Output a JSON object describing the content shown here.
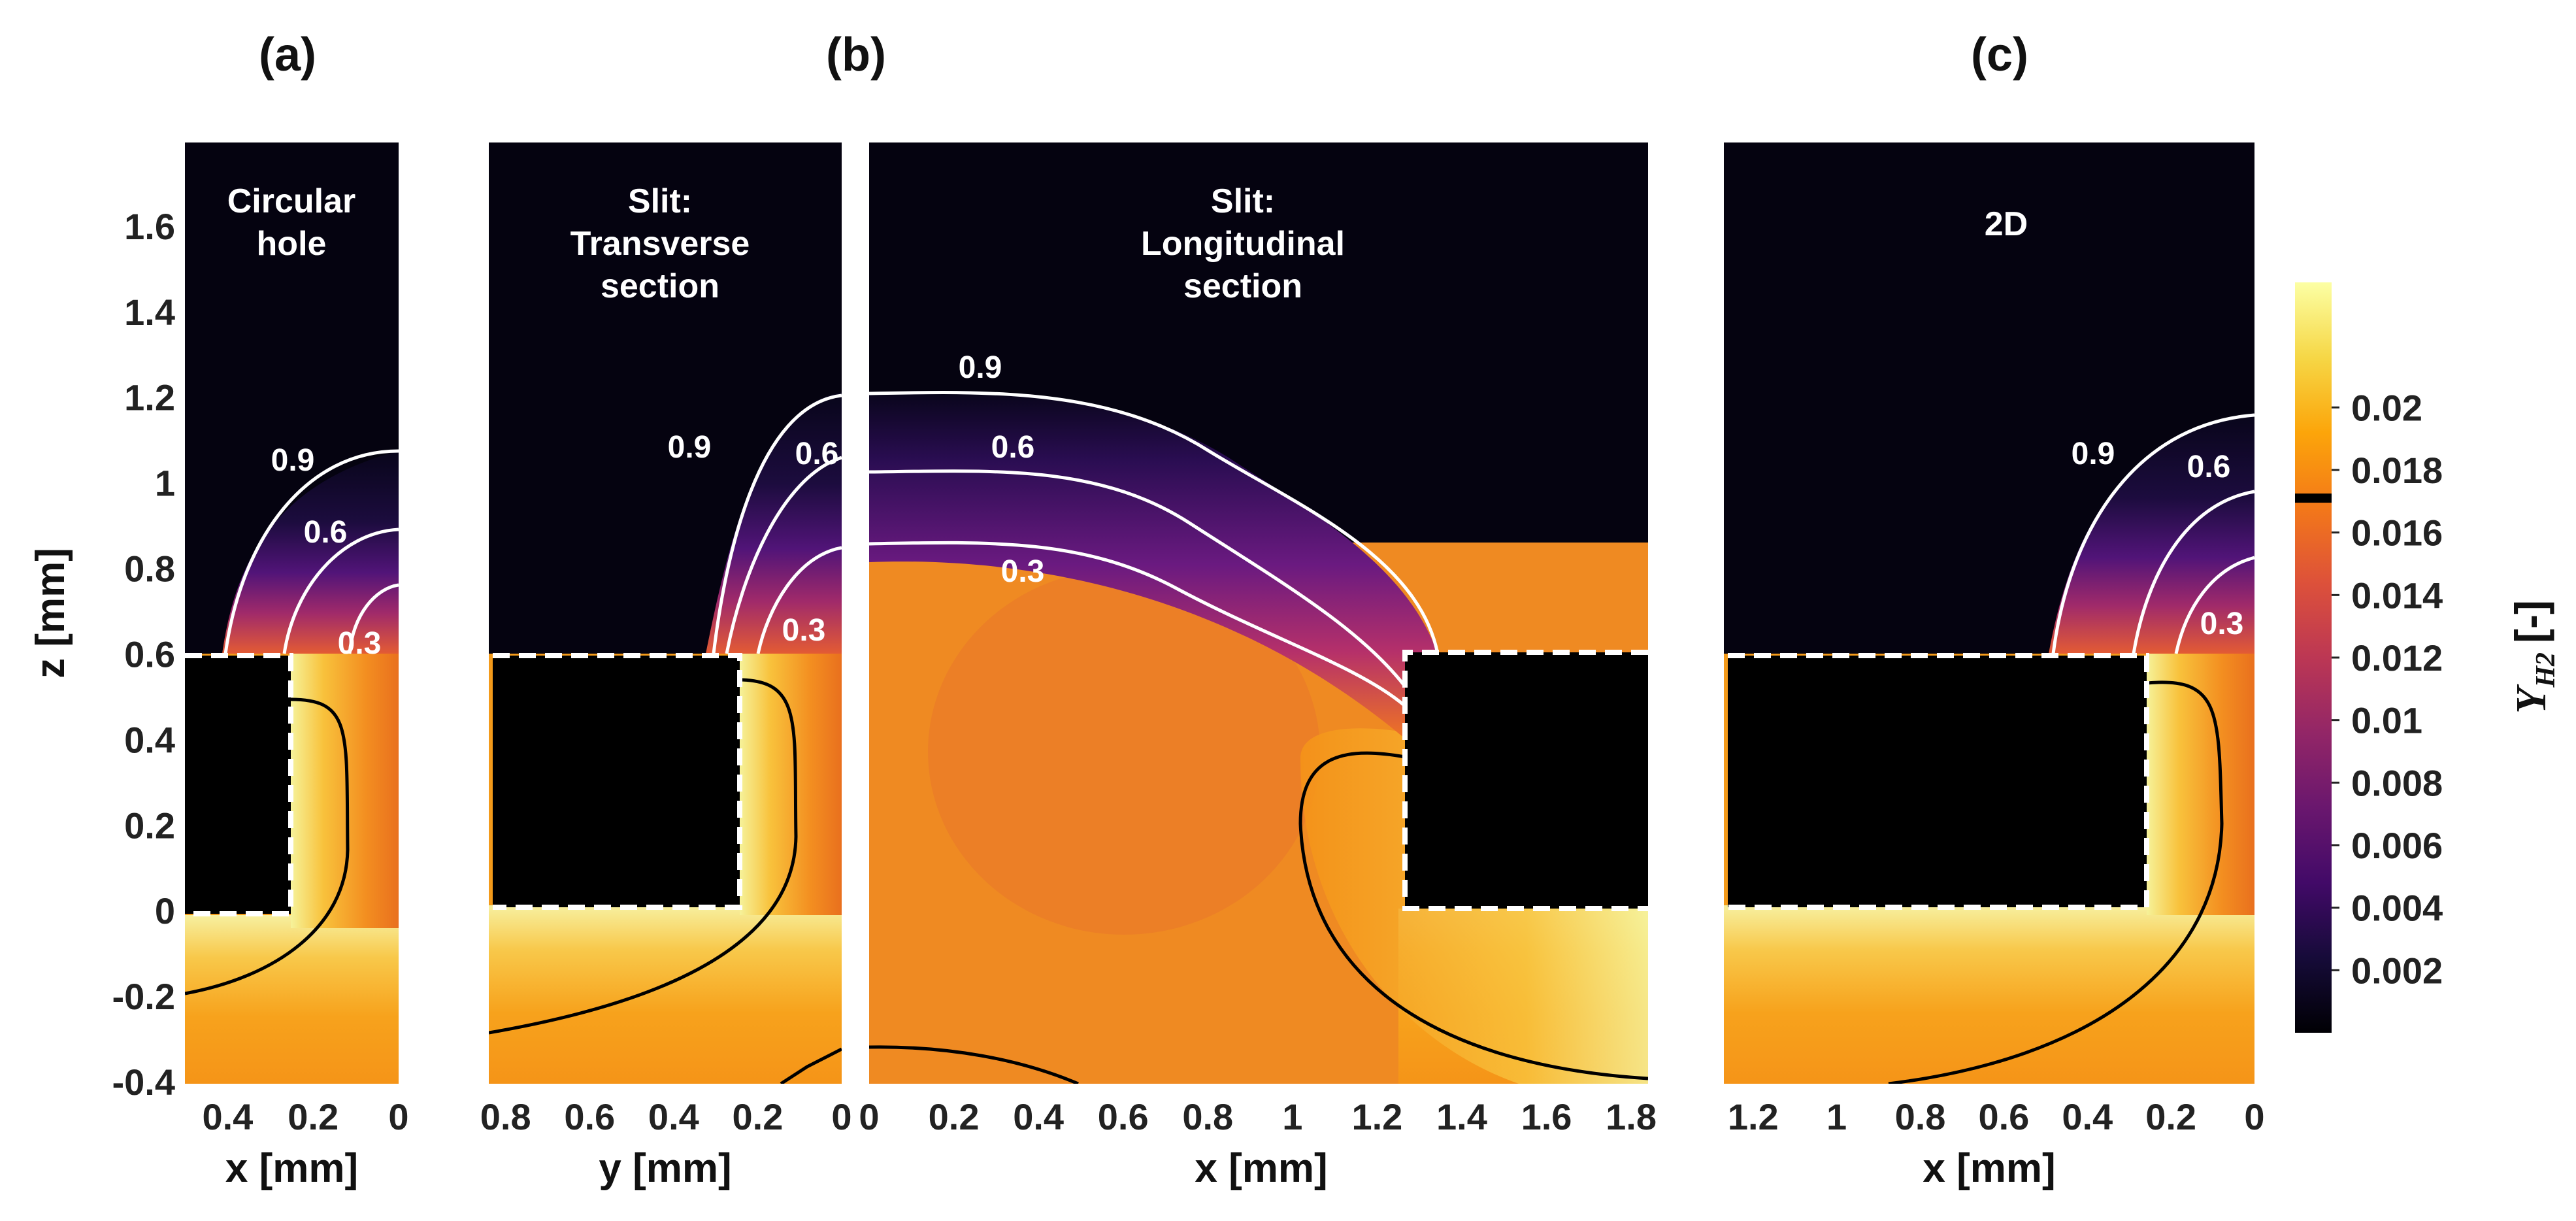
{
  "chart_data": {
    "type": "heatmap",
    "panel_labels": [
      "(a)",
      "(b)",
      "(c)"
    ],
    "panels": [
      {
        "id": "a",
        "annotation": "Circular hole",
        "xlabel": "x [mm]",
        "xlim": [
          0.5,
          0
        ],
        "x_ticks": [
          "0.4",
          "0.2",
          "0"
        ],
        "contour_labels": [
          "0.9",
          "0.6",
          "0.3"
        ]
      },
      {
        "id": "b-transverse",
        "annotation": "Slit: Transverse section",
        "xlabel": "y [mm]",
        "xlim": [
          0.84,
          0
        ],
        "x_ticks": [
          "0.8",
          "0.6",
          "0.4",
          "0.2",
          "0"
        ],
        "contour_labels": [
          "0.9",
          "0.6",
          "0.3"
        ]
      },
      {
        "id": "b-longitudinal",
        "annotation": "Slit: Longitudinal section",
        "xlabel": "x [mm]",
        "xlim": [
          0,
          1.84
        ],
        "x_ticks": [
          "0",
          "0.2",
          "0.4",
          "0.6",
          "0.8",
          "1",
          "1.2",
          "1.4",
          "1.6",
          "1.8"
        ],
        "contour_labels": [
          "0.9",
          "0.6",
          "0.3"
        ]
      },
      {
        "id": "c",
        "annotation": "2D",
        "xlabel": "x [mm]",
        "xlim": [
          1.27,
          0
        ],
        "x_ticks": [
          "1.2",
          "1",
          "0.8",
          "0.6",
          "0.4",
          "0.2",
          "0"
        ],
        "contour_labels": [
          "0.9",
          "0.6",
          "0.3"
        ]
      }
    ],
    "ylabel": "z [mm]",
    "ylim": [
      -0.4,
      1.8
    ],
    "y_ticks": [
      "1.6",
      "1.4",
      "1.2",
      "1",
      "0.8",
      "0.6",
      "0.4",
      "0.2",
      "0",
      "-0.2",
      "-0.4"
    ],
    "colorbar": {
      "label": "Y_H2 [-]",
      "label_main": "Y",
      "label_sub": "H2",
      "label_unit": "[-]",
      "range": [
        0,
        0.024
      ],
      "ticks": [
        "0.02",
        "0.018",
        "0.016",
        "0.014",
        "0.012",
        "0.01",
        "0.008",
        "0.006",
        "0.004",
        "0.002"
      ],
      "marker_value": 0.0171,
      "colormap": "inferno"
    }
  }
}
